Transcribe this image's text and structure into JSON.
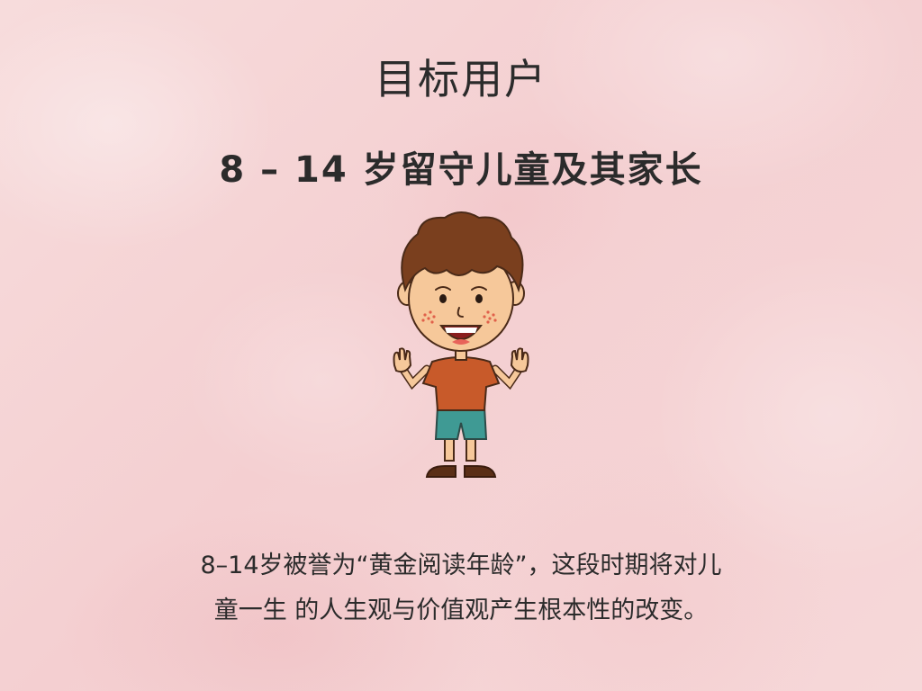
{
  "slide": {
    "title": "目标用户",
    "subtitle": "8 – 14 岁留守儿童及其家长",
    "illustration": {
      "name": "smiling-boy-waving-illustration",
      "colors": {
        "hair": "#7a3f1e",
        "skin": "#f6c89a",
        "shirt": "#c85a2a",
        "shorts": "#3f9a94",
        "shoes": "#5a2e16"
      }
    },
    "body_lines": [
      "8–14岁被誉为“黄金阅读年龄”，这段时期将对儿",
      "童一生 的人生观与价值观产生根本性的改变。"
    ]
  }
}
